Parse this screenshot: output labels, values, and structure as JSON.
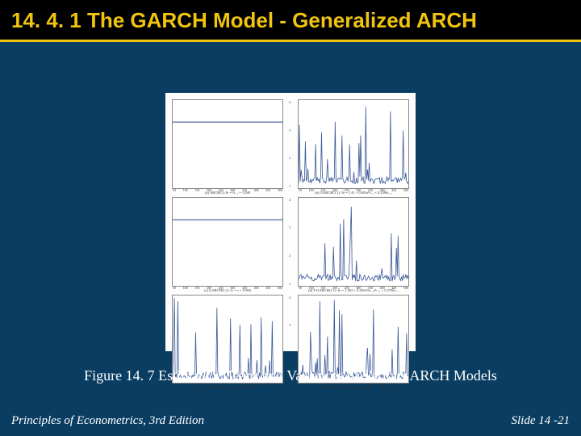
{
  "title": "14. 4. 1  The GARCH Model - Generalized ARCH",
  "figure_caption": "Figure 14. 7 Estimated Means and Variances of Various ARCH Models",
  "footer_left": "Principles of Econometrics, 3rd Edition",
  "footer_right": "Slide 14 -21",
  "colors": {
    "slide_bg": "#0a3d62",
    "title_bg": "#000000",
    "title_accent": "#f1c40f",
    "text_white": "#ffffff",
    "panel_bg": "#ffffff",
    "panel_border": "#888888",
    "line_color": "#3b5998",
    "axis_color": "#333333"
  },
  "panels": [
    {
      "type": "line",
      "y_labels": [
        "4",
        "3",
        "2",
        "1",
        ".0"
      ],
      "x_labels": [
        "50",
        "100",
        "150",
        "200",
        "250",
        "300",
        "350",
        "400",
        "450",
        "500"
      ],
      "caption": "(a) ARCH(1): ĥₜ = r̂ₜ₋₁ = 1.049",
      "flat_value": 0.75,
      "spikes_low": true
    },
    {
      "type": "line",
      "y_labels": [
        "4",
        "3",
        "2",
        "1"
      ],
      "x_labels": [
        "50",
        "100",
        "150",
        "200",
        "250",
        "300",
        "350",
        "400",
        "450",
        "500"
      ],
      "caption": "(b) GARCH(1,1): ĥₜ = 1.41 + 0.092ε̂²ₜ₋₁ + 0.259ĥₜ₋₁",
      "spikes_high": true
    },
    {
      "type": "line",
      "y_labels": [
        "4",
        "3",
        "2",
        "1",
        ".0"
      ],
      "x_labels": [
        "50",
        "100",
        "150",
        "200",
        "250",
        "300",
        "350",
        "400",
        "450",
        "500"
      ],
      "caption": "(c) GARCH(1,1): ēₜ = c = 0.994",
      "flat_value": 0.75,
      "spikes_low": true
    },
    {
      "type": "line",
      "y_labels": [
        "4",
        "3",
        "2",
        "1"
      ],
      "x_labels": [
        "50",
        "100",
        "150",
        "200",
        "250",
        "300",
        "350",
        "400",
        "450",
        "500"
      ],
      "caption": "(d) T-GARCH(1,1): ĥₜ = 1.263 + 0.202ε̂²dₜ₋₁ε̂²ₜ₋₁ + 0.278ĥₜ₋₁",
      "spikes_high": true
    },
    {
      "type": "line",
      "y_labels": [
        "4",
        "3",
        "2",
        "1"
      ],
      "x_labels": [
        "50",
        "100",
        "150",
        "200",
        "250",
        "300",
        "350",
        "400",
        "450",
        "500"
      ],
      "caption": "(e) GARCH in mean: ēₜ = 0.516 + 0.199ĥₜ",
      "spikes_high": true
    },
    {
      "type": "line",
      "y_labels": [
        "4",
        "3",
        "2",
        "1"
      ],
      "x_labels": [
        "50",
        "100",
        "150",
        "200",
        "250",
        "300",
        "350",
        "400",
        "450",
        "500"
      ],
      "caption": "(f) ARCH in mean: ĥₜ = 0.227 + 0.238ε̂²ₜ₋₁ + 0.521ĥₜ₋₁",
      "spikes_high": true
    }
  ]
}
